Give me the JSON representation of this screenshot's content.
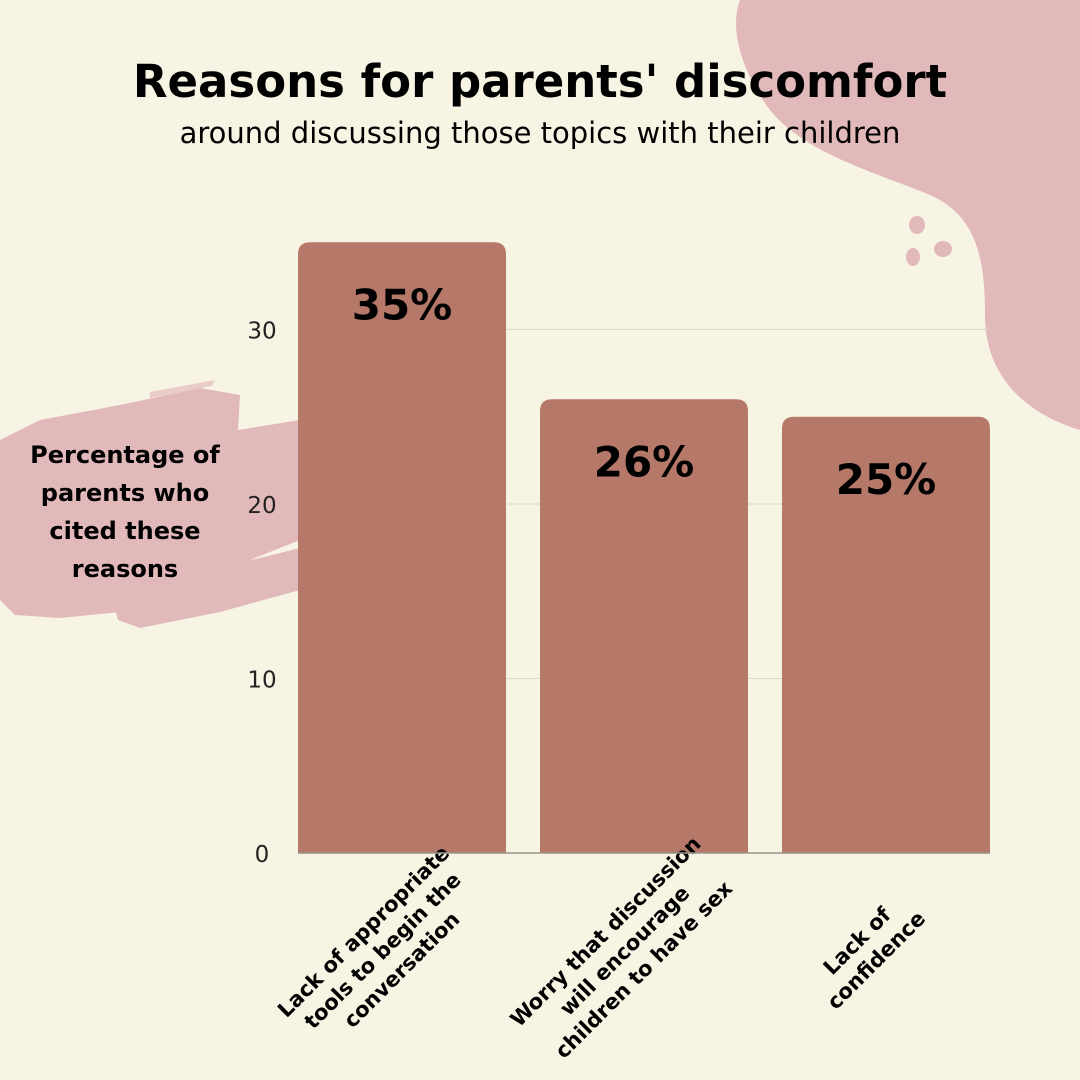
{
  "header": {
    "title": "Reasons for parents' discomfort",
    "subtitle": "around discussing those topics with their children"
  },
  "colors": {
    "background": "#f8f4e4",
    "bar": "#b57869",
    "blob": "#e2b9ba",
    "gridline": "#dcd8c8"
  },
  "chart_data": {
    "type": "bar",
    "ylabel": "Percentage of parents who cited these reasons",
    "categories": [
      [
        "Lack of appropriate",
        "tools to begin the",
        "conversation"
      ],
      [
        "Worry that discussion",
        "will encourage",
        "children to have sex"
      ],
      [
        "Lack of",
        "confidence"
      ]
    ],
    "values": [
      35,
      26,
      25
    ],
    "data_labels": [
      "35%",
      "26%",
      "25%"
    ],
    "yticks": [
      0,
      10,
      20,
      30
    ],
    "ylim": [
      0,
      35
    ],
    "grid": true
  }
}
